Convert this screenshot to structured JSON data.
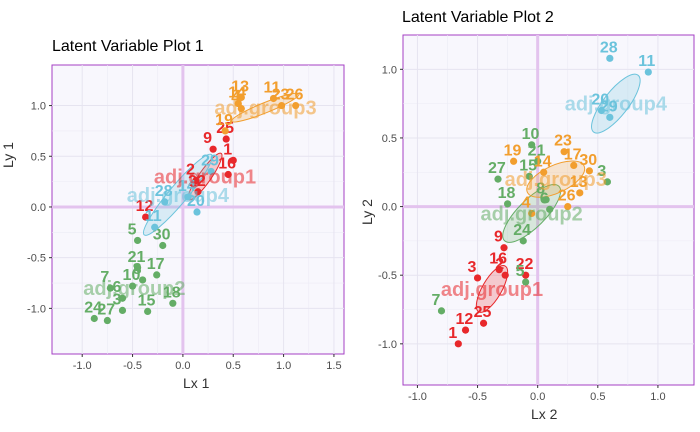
{
  "chart_data": [
    {
      "type": "scatter",
      "title": "Latent Variable Plot 1",
      "xlabel": "Lx 1",
      "ylabel": "Ly 1",
      "xlim": [
        -1.3,
        1.6
      ],
      "ylim": [
        -1.45,
        1.4
      ],
      "xticks": [
        -1.0,
        -0.5,
        0.0,
        0.5,
        1.0,
        1.5
      ],
      "yticks": [
        1.0,
        0.5,
        0.0,
        -0.5,
        -1.0
      ],
      "xtick_labels": [
        "-1.0",
        "-0.5",
        "0.0",
        "0.5",
        "1.0",
        "1.5"
      ],
      "ytick_labels": [
        "1.0",
        "0.5",
        "0.0",
        "-0.5",
        "-1.0"
      ],
      "grid": true,
      "groups": [
        {
          "name": "adj.group1",
          "color": "#e8282b",
          "ellipse": {
            "cx": 0.22,
            "cy": 0.3,
            "rx": 0.28,
            "ry": 0.06,
            "angle": -55
          },
          "points": [
            {
              "id": "25",
              "x": 0.43,
              "y": 0.67
            },
            {
              "id": "9",
              "x": 0.3,
              "y": 0.57
            },
            {
              "id": "1",
              "x": 0.5,
              "y": 0.46
            },
            {
              "id": "2",
              "x": 0.13,
              "y": 0.26
            },
            {
              "id": "16",
              "x": 0.45,
              "y": 0.32
            },
            {
              "id": "22",
              "x": 0.15,
              "y": 0.15
            },
            {
              "id": "12",
              "x": -0.37,
              "y": -0.1
            }
          ]
        },
        {
          "name": "adj.group2",
          "color": "#64ad66",
          "ellipse": null,
          "points": [
            {
              "id": "5",
              "x": -0.45,
              "y": -0.33
            },
            {
              "id": "21",
              "x": -0.45,
              "y": -0.6
            },
            {
              "id": "17",
              "x": -0.26,
              "y": -0.67
            },
            {
              "id": "7",
              "x": -0.72,
              "y": -0.8
            },
            {
              "id": "10",
              "x": -0.5,
              "y": -0.78
            },
            {
              "id": "18",
              "x": -0.1,
              "y": -0.95
            },
            {
              "id": "3",
              "x": -0.6,
              "y": -1.02
            },
            {
              "id": "15",
              "x": -0.35,
              "y": -1.03
            },
            {
              "id": "24",
              "x": -0.88,
              "y": -1.1
            },
            {
              "id": "27",
              "x": -0.75,
              "y": -1.12
            },
            {
              "id": "30",
              "x": -0.2,
              "y": -0.38
            },
            {
              "id": "8",
              "x": -0.4,
              "y": -0.72
            },
            {
              "id": "6",
              "x": -0.6,
              "y": -0.9
            }
          ]
        },
        {
          "name": "adj.group3",
          "color": "#f29e2e",
          "ellipse": {
            "cx": 0.82,
            "cy": 0.98,
            "rx": 0.36,
            "ry": 0.05,
            "angle": -22
          },
          "points": [
            {
              "id": "13",
              "x": 0.58,
              "y": 1.08
            },
            {
              "id": "23",
              "x": 0.98,
              "y": 1.0
            },
            {
              "id": "19",
              "x": 0.42,
              "y": 0.75
            },
            {
              "id": "4",
              "x": 0.58,
              "y": 0.97
            },
            {
              "id": "26",
              "x": 1.12,
              "y": 1.0
            },
            {
              "id": "14",
              "x": 0.55,
              "y": 1.02
            },
            {
              "id": "11",
              "x": 0.9,
              "y": 1.07
            }
          ]
        },
        {
          "name": "adj.group4",
          "color": "#6bc3dc",
          "ellipse": {
            "cx": -0.05,
            "cy": 0.12,
            "rx": 0.52,
            "ry": 0.09,
            "angle": -50
          },
          "points": [
            {
              "id": "28",
              "x": -0.18,
              "y": 0.05
            },
            {
              "id": "20",
              "x": 0.14,
              "y": -0.05
            },
            {
              "id": "11",
              "x": -0.28,
              "y": -0.2
            },
            {
              "id": "29",
              "x": 0.28,
              "y": 0.35
            },
            {
              "id": "14",
              "x": 0.05,
              "y": 0.1
            }
          ]
        }
      ]
    },
    {
      "type": "scatter",
      "title": "Latent Variable Plot 2",
      "xlabel": "Lx 2",
      "ylabel": "Ly 2",
      "xlim": [
        -1.12,
        1.3
      ],
      "ylim": [
        -1.3,
        1.25
      ],
      "xticks": [
        -1.0,
        -0.5,
        0.0,
        0.5,
        1.0
      ],
      "yticks": [
        1.0,
        0.5,
        0.0,
        -0.5,
        -1.0
      ],
      "xtick_labels": [
        "-1.0",
        "-0.5",
        "0.0",
        "0.5",
        "1.0"
      ],
      "ytick_labels": [
        "1.0",
        "0.5",
        "0.0",
        "-0.5",
        "-1.0"
      ],
      "grid": true,
      "groups": [
        {
          "name": "adj.group1",
          "color": "#e8282b",
          "ellipse": {
            "cx": -0.38,
            "cy": -0.6,
            "rx": 0.22,
            "ry": 0.07,
            "angle": -60
          },
          "points": [
            {
              "id": "9",
              "x": -0.28,
              "y": -0.3
            },
            {
              "id": "16",
              "x": -0.32,
              "y": -0.46
            },
            {
              "id": "2",
              "x": -0.27,
              "y": -0.5
            },
            {
              "id": "22",
              "x": -0.1,
              "y": -0.5
            },
            {
              "id": "12",
              "x": -0.6,
              "y": -0.9
            },
            {
              "id": "25",
              "x": -0.45,
              "y": -0.85
            },
            {
              "id": "1",
              "x": -0.66,
              "y": -1.0
            },
            {
              "id": "3",
              "x": -0.5,
              "y": -0.52
            }
          ]
        },
        {
          "name": "adj.group2",
          "color": "#64ad66",
          "ellipse": {
            "cx": -0.05,
            "cy": -0.05,
            "rx": 0.32,
            "ry": 0.1,
            "angle": -45
          },
          "points": [
            {
              "id": "10",
              "x": -0.05,
              "y": 0.45
            },
            {
              "id": "21",
              "x": 0.0,
              "y": 0.33
            },
            {
              "id": "27",
              "x": -0.33,
              "y": 0.2
            },
            {
              "id": "15",
              "x": -0.07,
              "y": 0.22
            },
            {
              "id": "18",
              "x": -0.25,
              "y": 0.02
            },
            {
              "id": "8",
              "x": 0.07,
              "y": 0.05
            },
            {
              "id": "24",
              "x": -0.12,
              "y": -0.25
            },
            {
              "id": "5",
              "x": -0.1,
              "y": -0.55
            },
            {
              "id": "7",
              "x": -0.8,
              "y": -0.76
            },
            {
              "id": "3",
              "x": 0.58,
              "y": 0.18
            },
            {
              "id": "6",
              "x": 0.1,
              "y": -0.02
            }
          ]
        },
        {
          "name": "adj.group3",
          "color": "#f29e2e",
          "ellipse": {
            "cx": 0.15,
            "cy": 0.2,
            "rx": 0.26,
            "ry": 0.1,
            "angle": -25
          },
          "points": [
            {
              "id": "23",
              "x": 0.22,
              "y": 0.4
            },
            {
              "id": "19",
              "x": -0.2,
              "y": 0.33
            },
            {
              "id": "17",
              "x": 0.3,
              "y": 0.3
            },
            {
              "id": "30",
              "x": 0.43,
              "y": 0.26
            },
            {
              "id": "13",
              "x": 0.35,
              "y": 0.1
            },
            {
              "id": "14",
              "x": 0.05,
              "y": 0.25
            },
            {
              "id": "4",
              "x": -0.05,
              "y": -0.05
            },
            {
              "id": "26",
              "x": 0.25,
              "y": 0.0
            }
          ]
        },
        {
          "name": "adj.group4",
          "color": "#6bc3dc",
          "ellipse": {
            "cx": 0.65,
            "cy": 0.75,
            "rx": 0.3,
            "ry": 0.09,
            "angle": -52
          },
          "points": [
            {
              "id": "28",
              "x": 0.6,
              "y": 1.08
            },
            {
              "id": "11",
              "x": 0.92,
              "y": 0.98
            },
            {
              "id": "20",
              "x": 0.53,
              "y": 0.7
            },
            {
              "id": "29",
              "x": 0.6,
              "y": 0.65
            }
          ]
        }
      ]
    }
  ]
}
